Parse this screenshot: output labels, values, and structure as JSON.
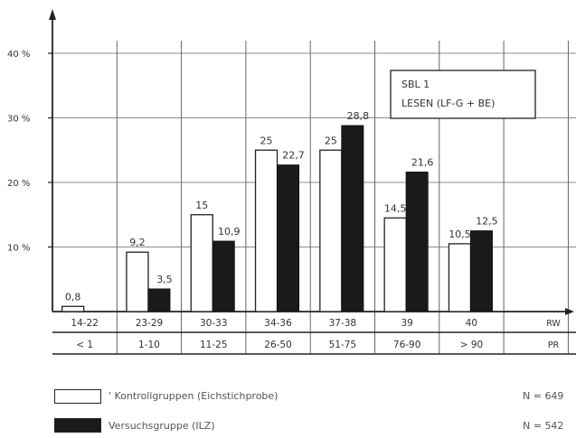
{
  "chart_data": {
    "type": "bar",
    "title_box": [
      "SBL 1",
      "LESEN (LF-G + BE)"
    ],
    "categories_rw": [
      "14-22",
      "23-29",
      "30-33",
      "34-36",
      "37-38",
      "39",
      "40"
    ],
    "categories_pr": [
      "< 1",
      "1-10",
      "11-25",
      "26-50",
      "51-75",
      "76-90",
      "> 90"
    ],
    "row_label_rw": "RW",
    "row_label_pr": "PR",
    "ylim": [
      0,
      45
    ],
    "yticks": [
      10,
      20,
      30,
      40
    ],
    "ytick_labels": [
      "10 %",
      "20 %",
      "30 %",
      "40 %"
    ],
    "series": [
      {
        "name": "Kontrollgruppen (Eichstichprobe)",
        "color": "#ffffff",
        "values": [
          0.8,
          9.2,
          15,
          25,
          25,
          14.5,
          10.5
        ],
        "labels": [
          "0,8",
          "9,2",
          "15",
          "25",
          "25",
          "14,5",
          "10,5"
        ]
      },
      {
        "name": "Versuchsgruppe (ILZ)",
        "color": "#1a1a1a",
        "values": [
          0,
          3.5,
          10.9,
          22.7,
          28.8,
          21.6,
          12.5
        ],
        "labels": [
          "",
          "3,5",
          "10,9",
          "22,7",
          "28,8",
          "21,6",
          "12,5"
        ]
      }
    ],
    "grid": true
  },
  "legend": {
    "items": [
      {
        "label": "' Kontrollgruppen (Eichstichprobe)",
        "n": "N = 649",
        "swatch": "white"
      },
      {
        "label": "Versuchsgruppe (ILZ)",
        "n": "N = 542",
        "swatch": "black"
      }
    ]
  }
}
